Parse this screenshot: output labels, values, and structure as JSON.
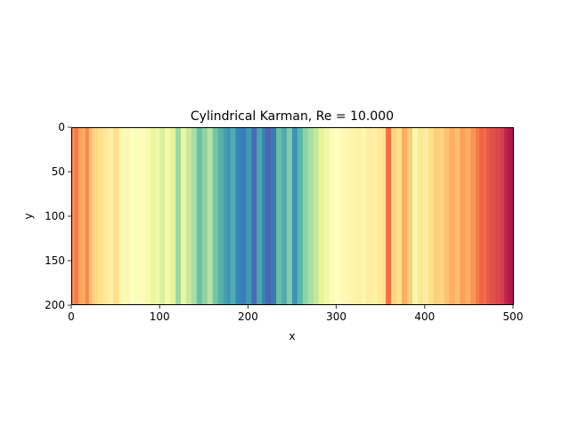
{
  "chart_data": {
    "type": "heatmap",
    "title": "Cylindrical Karman, Re = 10.000",
    "xlabel": "x",
    "ylabel": "y",
    "xlim": [
      0,
      500
    ],
    "ylim": [
      200,
      0
    ],
    "y_inverted": true,
    "grid": false,
    "legend": "none",
    "colormap": "Spectral",
    "xticks": [
      0,
      100,
      200,
      300,
      400,
      500
    ],
    "yticks": [
      0,
      50,
      100,
      150,
      200
    ],
    "column_values_by_x": [
      [
        0,
        0.25
      ],
      [
        4,
        0.22
      ],
      [
        8,
        0.28
      ],
      [
        12,
        0.3
      ],
      [
        16,
        0.24
      ],
      [
        20,
        0.33
      ],
      [
        24,
        0.38
      ],
      [
        30,
        0.4
      ],
      [
        36,
        0.43
      ],
      [
        42,
        0.45
      ],
      [
        48,
        0.4
      ],
      [
        54,
        0.47
      ],
      [
        60,
        0.48
      ],
      [
        66,
        0.5
      ],
      [
        72,
        0.52
      ],
      [
        78,
        0.49
      ],
      [
        84,
        0.54
      ],
      [
        90,
        0.58
      ],
      [
        96,
        0.56
      ],
      [
        100,
        0.62
      ],
      [
        106,
        0.55
      ],
      [
        112,
        0.6
      ],
      [
        118,
        0.72
      ],
      [
        124,
        0.58
      ],
      [
        130,
        0.65
      ],
      [
        136,
        0.7
      ],
      [
        142,
        0.8
      ],
      [
        148,
        0.74
      ],
      [
        154,
        0.68
      ],
      [
        160,
        0.78
      ],
      [
        166,
        0.83
      ],
      [
        172,
        0.86
      ],
      [
        176,
        0.88
      ],
      [
        180,
        0.84
      ],
      [
        186,
        0.9
      ],
      [
        192,
        0.92
      ],
      [
        198,
        0.87
      ],
      [
        204,
        0.95
      ],
      [
        210,
        0.85
      ],
      [
        216,
        0.91
      ],
      [
        220,
        0.96
      ],
      [
        226,
        0.93
      ],
      [
        232,
        0.8
      ],
      [
        238,
        0.84
      ],
      [
        244,
        0.76
      ],
      [
        250,
        0.88
      ],
      [
        256,
        0.82
      ],
      [
        262,
        0.74
      ],
      [
        268,
        0.7
      ],
      [
        274,
        0.66
      ],
      [
        280,
        0.6
      ],
      [
        286,
        0.56
      ],
      [
        292,
        0.52
      ],
      [
        298,
        0.5
      ],
      [
        304,
        0.48
      ],
      [
        310,
        0.47
      ],
      [
        316,
        0.46
      ],
      [
        322,
        0.45
      ],
      [
        328,
        0.47
      ],
      [
        334,
        0.44
      ],
      [
        340,
        0.45
      ],
      [
        346,
        0.43
      ],
      [
        352,
        0.41
      ],
      [
        356,
        0.2
      ],
      [
        362,
        0.38
      ],
      [
        368,
        0.4
      ],
      [
        374,
        0.3
      ],
      [
        380,
        0.36
      ],
      [
        386,
        0.55
      ],
      [
        392,
        0.42
      ],
      [
        398,
        0.44
      ],
      [
        404,
        0.4
      ],
      [
        410,
        0.37
      ],
      [
        416,
        0.38
      ],
      [
        422,
        0.34
      ],
      [
        428,
        0.3
      ],
      [
        434,
        0.33
      ],
      [
        440,
        0.28
      ],
      [
        446,
        0.3
      ],
      [
        452,
        0.26
      ],
      [
        458,
        0.22
      ],
      [
        462,
        0.18
      ],
      [
        466,
        0.2
      ],
      [
        470,
        0.16
      ],
      [
        474,
        0.14
      ],
      [
        480,
        0.12
      ],
      [
        486,
        0.1
      ],
      [
        490,
        0.06
      ],
      [
        494,
        0.04
      ],
      [
        498,
        0.03
      ]
    ]
  },
  "colors": {
    "spectral": [
      "#9e0142",
      "#d53e4f",
      "#f46d43",
      "#fdae61",
      "#fee08b",
      "#ffffbf",
      "#e6f598",
      "#abdda4",
      "#66c2a5",
      "#3288bd",
      "#5e4fa2"
    ],
    "axes": "#000000",
    "background": "#ffffff"
  }
}
